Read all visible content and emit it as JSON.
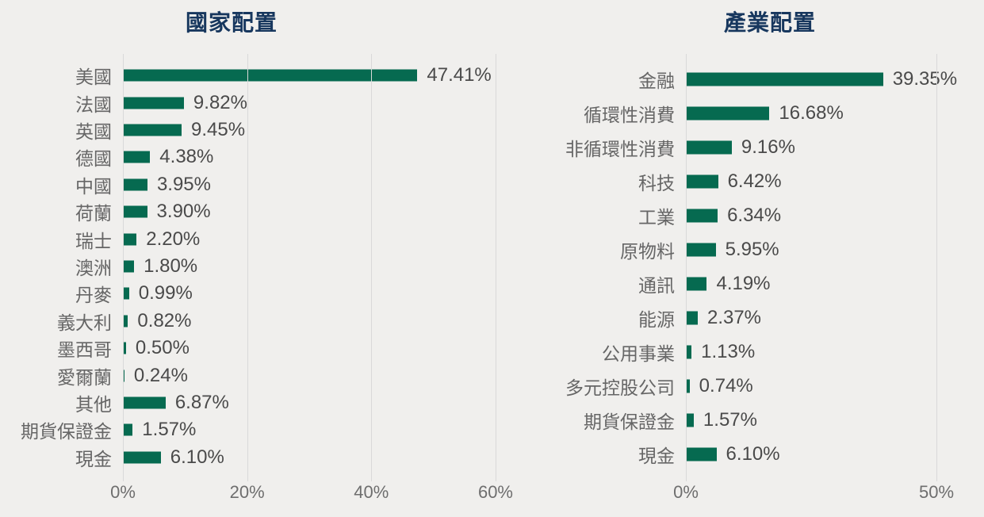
{
  "colors": {
    "bg": "#f0efed",
    "bar": "#066a50",
    "title": "#17375e",
    "grid": "#d9d9d9",
    "cat_text": "#666666",
    "val_text": "#4a4a4a",
    "axis_text": "#6e6e6e"
  },
  "chart_data": [
    {
      "type": "bar",
      "orientation": "horizontal",
      "title": "國家配置",
      "categories": [
        "美國",
        "法國",
        "英國",
        "德國",
        "中國",
        "荷蘭",
        "瑞士",
        "澳洲",
        "丹麥",
        "義大利",
        "墨西哥",
        "愛爾蘭",
        "其他",
        "期貨保證金",
        "現金"
      ],
      "values": [
        47.41,
        9.82,
        9.45,
        4.38,
        3.95,
        3.9,
        2.2,
        1.8,
        0.99,
        0.82,
        0.5,
        0.24,
        6.87,
        1.57,
        6.1
      ],
      "labels": [
        "47.41%",
        "9.82%",
        "9.45%",
        "4.38%",
        "3.95%",
        "3.90%",
        "2.20%",
        "1.80%",
        "0.99%",
        "0.82%",
        "0.50%",
        "0.24%",
        "6.87%",
        "1.57%",
        "6.10%"
      ],
      "xlim": [
        0,
        60
      ],
      "grid": true,
      "legend": false,
      "axis": {
        "ticks": [
          {
            "label": "0%",
            "value": 0
          },
          {
            "label": "20%",
            "value": 20
          },
          {
            "label": "40%",
            "value": 40
          },
          {
            "label": "60%",
            "value": 60
          }
        ]
      }
    },
    {
      "type": "bar",
      "orientation": "horizontal",
      "title": "產業配置",
      "categories": [
        "金融",
        "循環性消費",
        "非循環性消費",
        "科技",
        "工業",
        "原物料",
        "通訊",
        "能源",
        "公用事業",
        "多元控股公司",
        "期貨保證金",
        "現金"
      ],
      "values": [
        39.35,
        16.68,
        9.16,
        6.42,
        6.34,
        5.95,
        4.19,
        2.37,
        1.13,
        0.74,
        1.57,
        6.1
      ],
      "labels": [
        "39.35%",
        "16.68%",
        "9.16%",
        "6.42%",
        "6.34%",
        "5.95%",
        "4.19%",
        "2.37%",
        "1.13%",
        "0.74%",
        "1.57%",
        "6.10%"
      ],
      "xlim": [
        0,
        50
      ],
      "grid": true,
      "legend": false,
      "axis": {
        "ticks": [
          {
            "label": "0%",
            "value": 0
          },
          {
            "label": "50%",
            "value": 50
          }
        ]
      }
    }
  ]
}
